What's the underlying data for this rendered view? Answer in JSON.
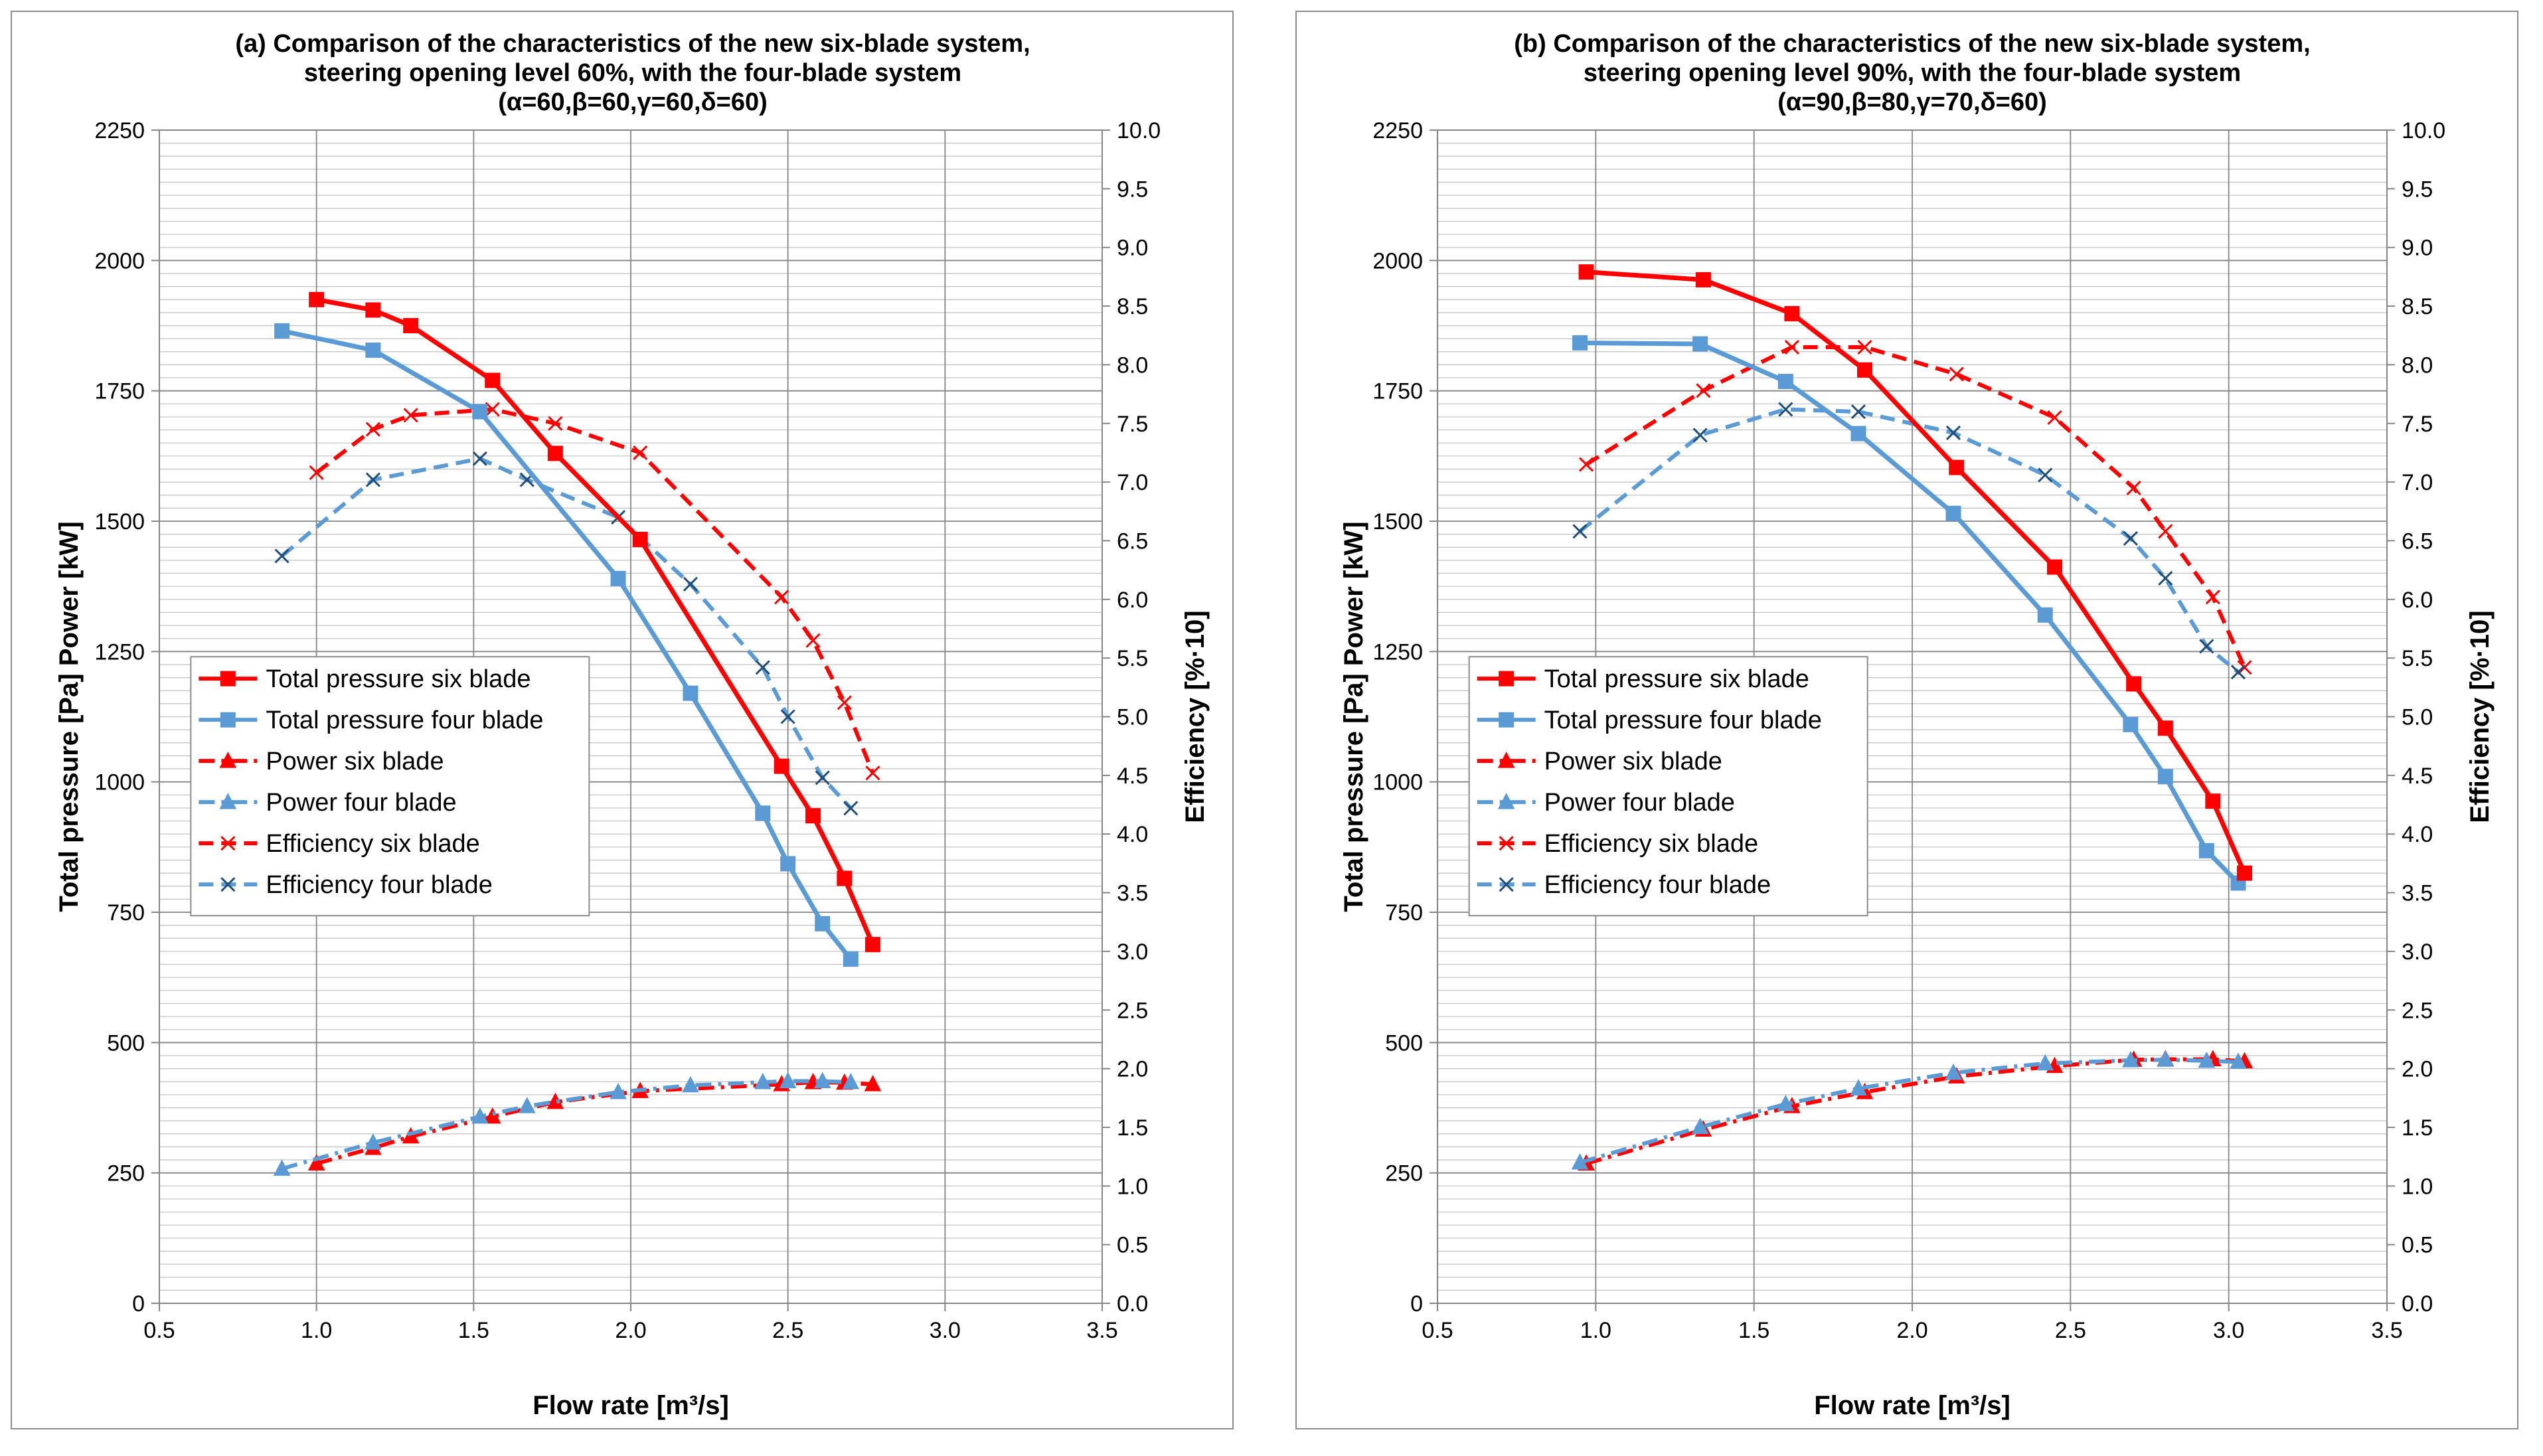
{
  "colors": {
    "red": "#ff0000",
    "blue": "#5b9bd5",
    "blueDark": "#1f4e79",
    "grid_major": "#868686",
    "grid_minor": "#c0c0c0"
  },
  "chart_data": [
    {
      "type": "line",
      "title_lines": [
        "(a) Comparison of the characteristics of the new six-blade system,",
        "steering opening level 60%, with the four-blade system",
        "(α=60,β=60,γ=60,δ=60)"
      ],
      "xlabel": "Flow rate  [m³/s]",
      "ylabel": "Total pressure [Pa] Power [kW]",
      "y2label": "Efficiency [%·10]",
      "xlim": [
        0.5,
        3.5
      ],
      "ylim": [
        0,
        2250
      ],
      "y2lim": [
        0,
        10
      ],
      "x_ticks": [
        "0.5",
        "1.0",
        "1.5",
        "2.0",
        "2.5",
        "3.0",
        "3.5"
      ],
      "y_ticks": [
        "0",
        "250",
        "500",
        "750",
        "1000",
        "1250",
        "1500",
        "1750",
        "2000",
        "2250"
      ],
      "y2_ticks": [
        "0.0",
        "0.5",
        "1.0",
        "1.5",
        "2.0",
        "2.5",
        "3.0",
        "3.5",
        "4.0",
        "4.5",
        "5.0",
        "5.5",
        "6.0",
        "6.5",
        "7.0",
        "7.5",
        "8.0",
        "8.5",
        "9.0",
        "9.5",
        "10.0"
      ],
      "legend": [
        "Total pressure six blade",
        "Total pressure four blade",
        "Power six blade",
        "Power four blade",
        "Efficiency six blade",
        "Efficiency four blade"
      ],
      "series": [
        {
          "name": "Total pressure six blade",
          "axis": "left",
          "marker": "square",
          "dash": "solid",
          "color": "red",
          "points": [
            [
              1.0,
              1925
            ],
            [
              1.18,
              1905
            ],
            [
              1.3,
              1875
            ],
            [
              1.56,
              1770
            ],
            [
              1.76,
              1630
            ],
            [
              2.03,
              1465
            ],
            [
              2.48,
              1030
            ],
            [
              2.58,
              935
            ],
            [
              2.68,
              815
            ],
            [
              2.77,
              688
            ]
          ]
        },
        {
          "name": "Total pressure four blade",
          "axis": "left",
          "marker": "square",
          "dash": "solid",
          "color": "blue",
          "points": [
            [
              0.89,
              1865
            ],
            [
              1.18,
              1828
            ],
            [
              1.52,
              1710
            ],
            [
              1.96,
              1390
            ],
            [
              2.19,
              1170
            ],
            [
              2.42,
              940
            ],
            [
              2.5,
              843
            ],
            [
              2.61,
              728
            ],
            [
              2.7,
              660
            ]
          ]
        },
        {
          "name": "Power six blade",
          "axis": "left",
          "marker": "triangle",
          "dash": "dashdot",
          "color": "red",
          "points": [
            [
              1.0,
              268
            ],
            [
              1.18,
              298
            ],
            [
              1.3,
              320
            ],
            [
              1.56,
              358
            ],
            [
              1.76,
              386
            ],
            [
              2.03,
              407
            ],
            [
              2.48,
              420
            ],
            [
              2.58,
              424
            ],
            [
              2.68,
              423
            ],
            [
              2.77,
              420
            ]
          ]
        },
        {
          "name": "Power four blade",
          "axis": "left",
          "marker": "triangle",
          "dash": "dashdot",
          "color": "blue",
          "points": [
            [
              0.89,
              258
            ],
            [
              1.18,
              308
            ],
            [
              1.52,
              358
            ],
            [
              1.67,
              378
            ],
            [
              1.96,
              405
            ],
            [
              2.19,
              418
            ],
            [
              2.42,
              424
            ],
            [
              2.5,
              426
            ],
            [
              2.61,
              426
            ],
            [
              2.7,
              424
            ]
          ]
        },
        {
          "name": "Efficiency six blade",
          "axis": "right",
          "marker": "x",
          "dash": "dashed",
          "color": "red",
          "points": [
            [
              1.0,
              7.08
            ],
            [
              1.18,
              7.45
            ],
            [
              1.3,
              7.57
            ],
            [
              1.56,
              7.62
            ],
            [
              1.76,
              7.5
            ],
            [
              2.03,
              7.25
            ],
            [
              2.48,
              6.02
            ],
            [
              2.58,
              5.65
            ],
            [
              2.68,
              5.12
            ],
            [
              2.77,
              4.52
            ]
          ]
        },
        {
          "name": "Efficiency four blade",
          "axis": "right",
          "marker": "x",
          "dash": "dashed",
          "color": "blue",
          "points": [
            [
              0.89,
              6.37
            ],
            [
              1.18,
              7.02
            ],
            [
              1.52,
              7.2
            ],
            [
              1.67,
              7.02
            ],
            [
              1.96,
              6.7
            ],
            [
              2.19,
              6.13
            ],
            [
              2.42,
              5.42
            ],
            [
              2.5,
              5.0
            ],
            [
              2.61,
              4.48
            ],
            [
              2.7,
              4.22
            ]
          ]
        }
      ]
    },
    {
      "type": "line",
      "title_lines": [
        "(b) Comparison of the characteristics of the new six-blade system,",
        "steering opening level 90%, with the four-blade system",
        "(α=90,β=80,γ=70,δ=60)"
      ],
      "xlabel": "Flow rate  [m³/s]",
      "ylabel": "Total pressure [Pa] Power [kW]",
      "y2label": "Efficiency [%·10]",
      "xlim": [
        0.5,
        3.5
      ],
      "ylim": [
        0,
        2250
      ],
      "y2lim": [
        0,
        10
      ],
      "x_ticks": [
        "0.5",
        "1.0",
        "1.5",
        "2.0",
        "2.5",
        "3.0",
        "3.5"
      ],
      "y_ticks": [
        "0",
        "250",
        "500",
        "750",
        "1000",
        "1250",
        "1500",
        "1750",
        "2000",
        "2250"
      ],
      "y2_ticks": [
        "0.0",
        "0.5",
        "1.0",
        "1.5",
        "2.0",
        "2.5",
        "3.0",
        "3.5",
        "4.0",
        "4.5",
        "5.0",
        "5.5",
        "6.0",
        "6.5",
        "7.0",
        "7.5",
        "8.0",
        "8.5",
        "9.0",
        "9.5",
        "10.0"
      ],
      "legend": [
        "Total pressure six blade",
        "Total pressure four blade",
        "Power six blade",
        "Power four blade",
        "Efficiency six blade",
        "Efficiency four blade"
      ],
      "series": [
        {
          "name": "Total pressure six blade",
          "axis": "left",
          "marker": "square",
          "dash": "solid",
          "color": "red",
          "points": [
            [
              0.97,
              1978
            ],
            [
              1.34,
              1963
            ],
            [
              1.62,
              1898
            ],
            [
              1.85,
              1790
            ],
            [
              2.14,
              1603
            ],
            [
              2.45,
              1412
            ],
            [
              2.7,
              1188
            ],
            [
              2.8,
              1103
            ],
            [
              2.95,
              963
            ],
            [
              3.05,
              825
            ]
          ]
        },
        {
          "name": "Total pressure four blade",
          "axis": "left",
          "marker": "square",
          "dash": "solid",
          "color": "blue",
          "points": [
            [
              0.95,
              1842
            ],
            [
              1.33,
              1840
            ],
            [
              1.6,
              1768
            ],
            [
              1.83,
              1668
            ],
            [
              2.13,
              1515
            ],
            [
              2.42,
              1320
            ],
            [
              2.69,
              1110
            ],
            [
              2.8,
              1010
            ],
            [
              2.93,
              868
            ],
            [
              3.03,
              806
            ]
          ]
        },
        {
          "name": "Power six blade",
          "axis": "left",
          "marker": "triangle",
          "dash": "dashdot",
          "color": "red",
          "points": [
            [
              0.97,
              268
            ],
            [
              1.34,
              333
            ],
            [
              1.62,
              378
            ],
            [
              1.85,
              405
            ],
            [
              2.14,
              435
            ],
            [
              2.45,
              455
            ],
            [
              2.7,
              467
            ],
            [
              2.8,
              468
            ],
            [
              2.95,
              468
            ],
            [
              3.05,
              464
            ]
          ]
        },
        {
          "name": "Power four blade",
          "axis": "left",
          "marker": "triangle",
          "dash": "dashdot",
          "color": "blue",
          "points": [
            [
              0.95,
              270
            ],
            [
              1.33,
              338
            ],
            [
              1.6,
              382
            ],
            [
              1.83,
              412
            ],
            [
              2.13,
              442
            ],
            [
              2.42,
              460
            ],
            [
              2.69,
              466
            ],
            [
              2.8,
              467
            ],
            [
              2.93,
              465
            ],
            [
              3.03,
              463
            ]
          ]
        },
        {
          "name": "Efficiency six blade",
          "axis": "right",
          "marker": "x",
          "dash": "dashed",
          "color": "red",
          "points": [
            [
              0.97,
              7.15
            ],
            [
              1.34,
              7.78
            ],
            [
              1.62,
              8.15
            ],
            [
              1.85,
              8.15
            ],
            [
              2.14,
              7.92
            ],
            [
              2.45,
              7.55
            ],
            [
              2.7,
              6.95
            ],
            [
              2.8,
              6.58
            ],
            [
              2.95,
              6.02
            ],
            [
              3.05,
              5.42
            ]
          ]
        },
        {
          "name": "Efficiency four blade",
          "axis": "right",
          "marker": "x",
          "dash": "dashed",
          "color": "blue",
          "points": [
            [
              0.95,
              6.58
            ],
            [
              1.33,
              7.4
            ],
            [
              1.6,
              7.62
            ],
            [
              1.83,
              7.6
            ],
            [
              2.13,
              7.42
            ],
            [
              2.42,
              7.06
            ],
            [
              2.69,
              6.52
            ],
            [
              2.8,
              6.18
            ],
            [
              2.93,
              5.6
            ],
            [
              3.03,
              5.38
            ]
          ]
        }
      ]
    }
  ]
}
